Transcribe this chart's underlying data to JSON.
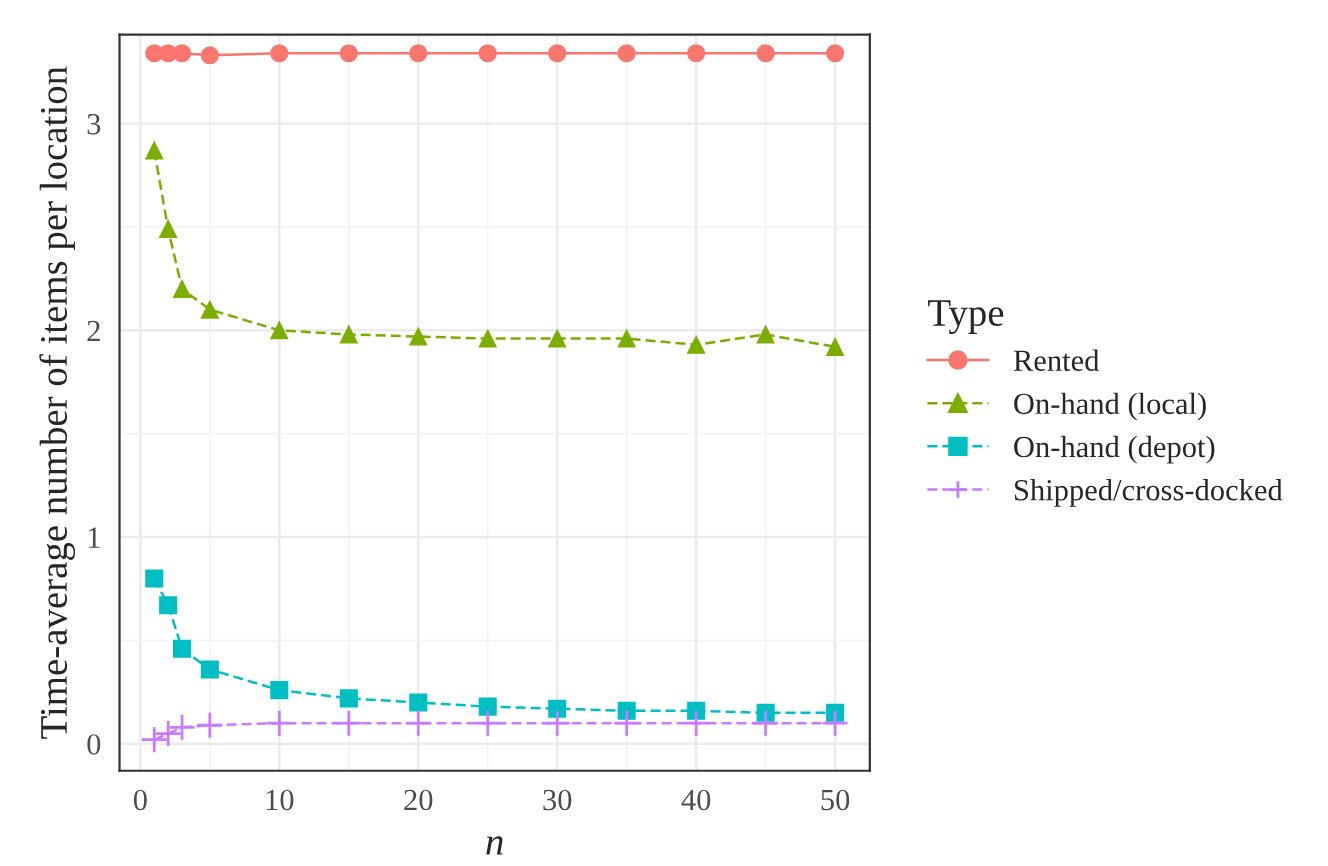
{
  "chart_data": {
    "type": "line",
    "xlabel": "n",
    "ylabel": "Time-average number of items per location",
    "legend_title": "Type",
    "x": [
      1,
      2,
      3,
      5,
      10,
      15,
      20,
      25,
      30,
      35,
      40,
      45,
      50
    ],
    "series": [
      {
        "name": "Rented",
        "color": "#f8766d",
        "marker": "circle",
        "line_style": "solid",
        "values": [
          3.34,
          3.34,
          3.34,
          3.33,
          3.34,
          3.34,
          3.34,
          3.34,
          3.34,
          3.34,
          3.34,
          3.34,
          3.34
        ]
      },
      {
        "name": "On-hand (local)",
        "color": "#7cae00",
        "marker": "triangle",
        "line_style": "dashed",
        "values": [
          2.87,
          2.49,
          2.2,
          2.1,
          2.0,
          1.98,
          1.97,
          1.96,
          1.96,
          1.96,
          1.93,
          1.98,
          1.92
        ]
      },
      {
        "name": "On-hand (depot)",
        "color": "#00bfc4",
        "marker": "square",
        "line_style": "dashed",
        "values": [
          0.8,
          0.67,
          0.46,
          0.36,
          0.26,
          0.22,
          0.2,
          0.18,
          0.17,
          0.16,
          0.16,
          0.15,
          0.15
        ]
      },
      {
        "name": "Shipped/cross-docked",
        "color": "#c77cff",
        "marker": "cross",
        "line_style": "dashed",
        "values": [
          0.02,
          0.05,
          0.08,
          0.09,
          0.1,
          0.1,
          0.1,
          0.1,
          0.1,
          0.1,
          0.1,
          0.1,
          0.1
        ]
      }
    ],
    "xlim": [
      -1.5,
      52.5
    ],
    "ylim": [
      -0.13,
      3.43
    ],
    "xticks": [
      0,
      10,
      20,
      30,
      40,
      50
    ],
    "yticks": [
      0,
      1,
      2,
      3
    ],
    "grid": true,
    "legend": "right"
  }
}
